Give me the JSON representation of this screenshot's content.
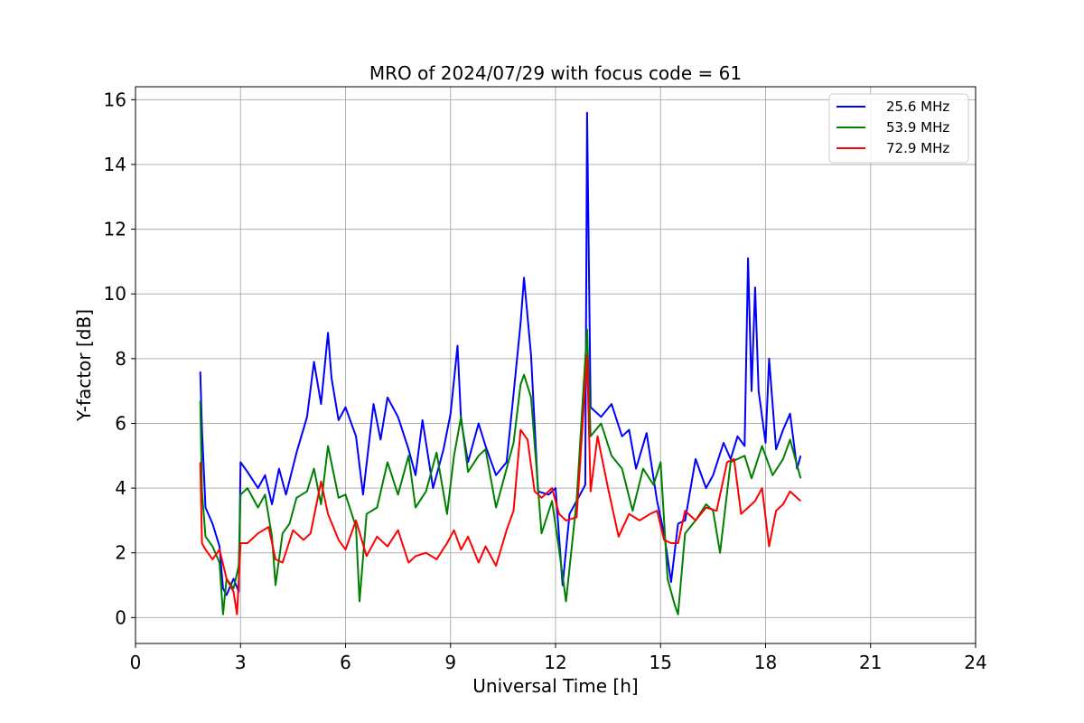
{
  "chart_data": {
    "type": "line",
    "title": "MRO of 2024/07/29 with focus code = 61",
    "xlabel": "Universal Time [h]",
    "ylabel": "Y-factor [dB]",
    "xlim": [
      0,
      24
    ],
    "ylim": [
      -0.8,
      16.4
    ],
    "xticks": [
      0,
      3,
      6,
      9,
      12,
      15,
      18,
      21,
      24
    ],
    "yticks": [
      0,
      2,
      4,
      6,
      8,
      10,
      12,
      14,
      16
    ],
    "grid": true,
    "legend": "top-right",
    "series": [
      {
        "name": "25.6 MHz",
        "color": "#0000ff",
        "x": [
          1.85,
          1.9,
          2.0,
          2.2,
          2.4,
          2.5,
          2.6,
          2.8,
          2.95,
          3.0,
          3.2,
          3.5,
          3.7,
          3.9,
          4.1,
          4.3,
          4.6,
          4.9,
          5.1,
          5.3,
          5.5,
          5.6,
          5.8,
          6.0,
          6.3,
          6.5,
          6.8,
          7.0,
          7.2,
          7.5,
          7.8,
          8.0,
          8.2,
          8.5,
          8.8,
          9.0,
          9.2,
          9.3,
          9.5,
          9.8,
          10.0,
          10.3,
          10.6,
          10.8,
          11.0,
          11.1,
          11.3,
          11.5,
          11.8,
          12.0,
          12.2,
          12.4,
          12.6,
          12.85,
          12.9,
          13.0,
          13.3,
          13.6,
          13.9,
          14.1,
          14.3,
          14.6,
          14.9,
          15.1,
          15.3,
          15.5,
          15.7,
          16.0,
          16.3,
          16.5,
          16.8,
          17.0,
          17.2,
          17.4,
          17.5,
          17.6,
          17.7,
          17.8,
          18.0,
          18.1,
          18.3,
          18.5,
          18.7,
          18.9,
          19.0
        ],
        "y": [
          7.6,
          5.8,
          3.4,
          2.9,
          2.2,
          0.9,
          0.7,
          1.2,
          0.8,
          4.8,
          4.5,
          4.0,
          4.4,
          3.5,
          4.6,
          3.8,
          5.1,
          6.2,
          7.9,
          6.6,
          8.8,
          7.4,
          6.1,
          6.5,
          5.6,
          3.8,
          6.6,
          5.5,
          6.8,
          6.2,
          5.2,
          4.4,
          6.1,
          4.0,
          5.2,
          6.3,
          8.4,
          6.1,
          4.8,
          6.0,
          5.3,
          4.4,
          4.8,
          6.9,
          9.1,
          10.5,
          8.1,
          3.9,
          3.8,
          4.0,
          1.0,
          3.2,
          3.6,
          4.1,
          15.6,
          6.5,
          6.2,
          6.6,
          5.6,
          5.8,
          4.6,
          5.7,
          3.6,
          2.6,
          1.1,
          2.9,
          3.0,
          4.9,
          4.0,
          4.4,
          5.4,
          4.9,
          5.6,
          5.3,
          11.1,
          7.0,
          10.2,
          7.0,
          5.4,
          8.0,
          5.2,
          5.8,
          6.3,
          4.6,
          5.0
        ]
      },
      {
        "name": "53.9 MHz",
        "color": "#008000",
        "x": [
          1.85,
          1.9,
          2.0,
          2.2,
          2.4,
          2.5,
          2.6,
          2.8,
          2.95,
          3.0,
          3.2,
          3.5,
          3.7,
          3.9,
          4.0,
          4.2,
          4.4,
          4.6,
          4.9,
          5.1,
          5.3,
          5.5,
          5.8,
          6.0,
          6.3,
          6.4,
          6.6,
          6.9,
          7.2,
          7.5,
          7.8,
          8.0,
          8.3,
          8.6,
          8.9,
          9.1,
          9.3,
          9.5,
          9.8,
          10.0,
          10.3,
          10.6,
          10.8,
          11.0,
          11.1,
          11.3,
          11.6,
          11.9,
          12.1,
          12.3,
          12.6,
          12.9,
          13.0,
          13.3,
          13.6,
          13.9,
          14.2,
          14.5,
          14.8,
          15.0,
          15.2,
          15.4,
          15.5,
          15.7,
          16.0,
          16.3,
          16.5,
          16.7,
          17.0,
          17.2,
          17.4,
          17.6,
          17.9,
          18.2,
          18.5,
          18.7,
          19.0
        ],
        "y": [
          6.7,
          3.9,
          2.5,
          2.2,
          1.7,
          0.1,
          1.2,
          0.9,
          1.6,
          3.8,
          4.0,
          3.4,
          3.8,
          2.5,
          1.0,
          2.6,
          2.9,
          3.7,
          3.9,
          4.6,
          3.5,
          5.3,
          3.7,
          3.8,
          2.8,
          0.5,
          3.2,
          3.4,
          4.8,
          3.8,
          5.0,
          3.4,
          3.9,
          5.1,
          3.2,
          5.0,
          6.2,
          4.5,
          5.0,
          5.2,
          3.4,
          4.6,
          5.4,
          7.2,
          7.5,
          6.8,
          2.6,
          3.6,
          2.1,
          0.5,
          3.6,
          8.9,
          5.6,
          6.0,
          5.0,
          4.6,
          3.3,
          4.6,
          4.1,
          4.8,
          1.2,
          0.4,
          0.1,
          2.6,
          3.0,
          3.5,
          3.3,
          2.0,
          4.8,
          4.9,
          5.0,
          4.3,
          5.3,
          4.4,
          4.9,
          5.5,
          4.3
        ]
      },
      {
        "name": "72.9 MHz",
        "color": "#ff0000",
        "x": [
          1.85,
          1.9,
          2.0,
          2.2,
          2.4,
          2.6,
          2.8,
          2.9,
          3.0,
          3.2,
          3.5,
          3.8,
          4.0,
          4.2,
          4.5,
          4.8,
          5.0,
          5.3,
          5.5,
          5.8,
          6.0,
          6.3,
          6.6,
          6.9,
          7.2,
          7.5,
          7.8,
          8.0,
          8.3,
          8.6,
          8.9,
          9.1,
          9.3,
          9.5,
          9.8,
          10.0,
          10.3,
          10.6,
          10.8,
          11.0,
          11.2,
          11.4,
          11.6,
          11.9,
          12.1,
          12.3,
          12.6,
          12.9,
          13.0,
          13.2,
          13.5,
          13.8,
          14.1,
          14.4,
          14.7,
          14.9,
          15.1,
          15.3,
          15.5,
          15.7,
          16.0,
          16.3,
          16.6,
          16.9,
          17.1,
          17.3,
          17.5,
          17.7,
          17.9,
          18.1,
          18.3,
          18.5,
          18.7,
          19.0
        ],
        "y": [
          4.8,
          2.3,
          2.1,
          1.8,
          2.1,
          1.2,
          0.8,
          0.1,
          2.3,
          2.3,
          2.6,
          2.8,
          1.8,
          1.7,
          2.7,
          2.4,
          2.6,
          4.2,
          3.2,
          2.4,
          2.1,
          3.0,
          1.9,
          2.5,
          2.2,
          2.7,
          1.7,
          1.9,
          2.0,
          1.8,
          2.3,
          2.7,
          2.1,
          2.5,
          1.7,
          2.2,
          1.6,
          2.7,
          3.3,
          5.8,
          5.5,
          3.9,
          3.7,
          4.0,
          3.2,
          3.0,
          3.1,
          8.1,
          3.9,
          5.6,
          4.0,
          2.5,
          3.2,
          3.0,
          3.2,
          3.3,
          2.4,
          2.3,
          2.3,
          3.3,
          3.0,
          3.4,
          3.3,
          4.8,
          4.9,
          3.2,
          3.4,
          3.6,
          4.0,
          2.2,
          3.3,
          3.5,
          3.9,
          3.6
        ]
      }
    ]
  }
}
